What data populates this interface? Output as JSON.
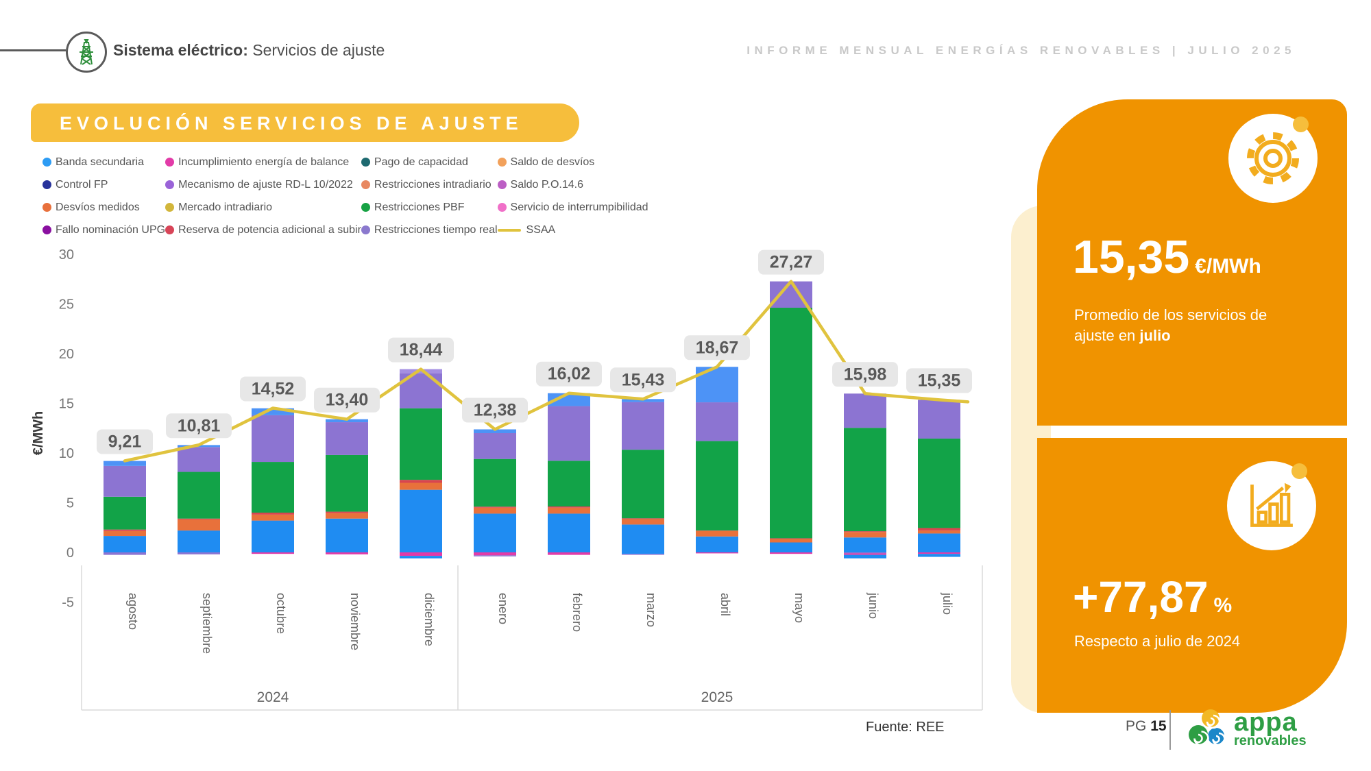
{
  "header": {
    "section_bold": "Sistema eléctrico:",
    "section_rest": " Servicios de ajuste",
    "report_title": "INFORME MENSUAL ENERGÍAS RENOVABLES | JULIO 2025"
  },
  "banner": {
    "title": "EVOLUCIÓN SERVICIOS DE AJUSTE",
    "bg": "#F6BE3C"
  },
  "legend": {
    "columns": [
      [
        {
          "label": "Banda secundaria",
          "color": "#2D9CF4"
        },
        {
          "label": "Control FP",
          "color": "#28339B"
        },
        {
          "label": "Desvíos medidos",
          "color": "#E8703C"
        },
        {
          "label": "Fallo nominación UPG",
          "color": "#8A10A0"
        }
      ],
      [
        {
          "label": "Incumplimiento energía de balance",
          "color": "#E23BA8"
        },
        {
          "label": "Mecanismo de ajuste RD-L 10/2022",
          "color": "#9A63D8"
        },
        {
          "label": "Mercado intradiario",
          "color": "#D2B63B"
        },
        {
          "label": "Reserva de potencia adicional a subir",
          "color": "#D84558"
        }
      ],
      [
        {
          "label": "Pago de capacidad",
          "color": "#1E6A70"
        },
        {
          "label": "Restricciones intradiario",
          "color": "#E88861"
        },
        {
          "label": "Restricciones PBF",
          "color": "#17A244"
        },
        {
          "label": "Restricciones tiempo real",
          "color": "#8B79CE"
        }
      ],
      [
        {
          "label": "Saldo de desvíos",
          "color": "#F2A15B"
        },
        {
          "label": "Saldo P.O.14.6",
          "color": "#BC5FC4"
        },
        {
          "label": "Servicio de interrumpibilidad",
          "color": "#F070C8"
        },
        {
          "label": "SSAA",
          "color": "#E0C33E",
          "type": "line"
        }
      ]
    ]
  },
  "chart_data": {
    "type": "bar",
    "subtype": "stacked-columns-with-line",
    "title": "EVOLUCIÓN SERVICIOS DE AJUSTE",
    "xlabel": "",
    "ylabel": "€/MWh",
    "ylim": [
      -5,
      30
    ],
    "yticks": [
      30,
      25,
      20,
      15,
      10,
      5,
      0,
      -5
    ],
    "grid": false,
    "legend_position": "top",
    "categories": [
      "agosto",
      "septiembre",
      "octubre",
      "noviembre",
      "diciembre",
      "enero",
      "febrero",
      "marzo",
      "abril",
      "mayo",
      "junio",
      "julio"
    ],
    "year_groups": [
      {
        "label": "2024",
        "from": 0,
        "to": 4
      },
      {
        "label": "2025",
        "from": 5,
        "to": 11
      }
    ],
    "totals": [
      9.21,
      10.81,
      14.52,
      13.4,
      18.44,
      12.38,
      16.02,
      15.43,
      18.67,
      27.27,
      15.98,
      15.35
    ],
    "total_labels": [
      "9,21",
      "10,81",
      "14,52",
      "13,40",
      "18,44",
      "12,38",
      "16,02",
      "15,43",
      "18,67",
      "27,27",
      "15,98",
      "15,35"
    ],
    "line": {
      "name": "SSAA",
      "color": "#E0C33E",
      "values": [
        9.21,
        10.81,
        14.52,
        13.4,
        18.44,
        12.38,
        16.02,
        15.43,
        18.67,
        27.27,
        15.98,
        15.35
      ]
    },
    "bar_colors": {
      "blue": "#1F8CF2",
      "lightblue": "#4D93F6",
      "orange": "#E8713B",
      "red": "#D8464F",
      "green": "#12A348",
      "purple": "#8C74D2",
      "lavender": "#A58FE2",
      "magenta": "#E23BA8"
    },
    "bars": [
      {
        "month": "agosto",
        "segments": [
          [
            "#1F8CF2",
            1.65
          ],
          [
            "#E8713B",
            0.5
          ],
          [
            "#D8464F",
            0.15
          ],
          [
            "#12A348",
            3.3
          ],
          [
            "#8C74D2",
            3.1
          ],
          [
            "#4D93F6",
            0.5
          ]
        ],
        "negatives": [
          [
            "#8C74D2",
            0.25
          ]
        ]
      },
      {
        "month": "septiembre",
        "segments": [
          [
            "#1F8CF2",
            2.2
          ],
          [
            "#E8713B",
            1.1
          ],
          [
            "#D8464F",
            0.1
          ],
          [
            "#12A348",
            4.7
          ],
          [
            "#8C74D2",
            2.5
          ],
          [
            "#4D93F6",
            0.2
          ]
        ],
        "negatives": [
          [
            "#8C74D2",
            0.2
          ]
        ]
      },
      {
        "month": "octubre",
        "segments": [
          [
            "#1F8CF2",
            3.2
          ],
          [
            "#E8713B",
            0.6
          ],
          [
            "#D8464F",
            0.2
          ],
          [
            "#12A348",
            5.1
          ],
          [
            "#8C74D2",
            4.7
          ],
          [
            "#4D93F6",
            0.7
          ]
        ],
        "negatives": [
          [
            "#E23BA8",
            0.15
          ]
        ]
      },
      {
        "month": "noviembre",
        "segments": [
          [
            "#1F8CF2",
            3.4
          ],
          [
            "#E8713B",
            0.55
          ],
          [
            "#D8464F",
            0.15
          ],
          [
            "#12A348",
            5.7
          ],
          [
            "#8C74D2",
            3.3
          ],
          [
            "#4D93F6",
            0.3
          ]
        ],
        "negatives": [
          [
            "#E23BA8",
            0.2
          ]
        ]
      },
      {
        "month": "diciembre",
        "segments": [
          [
            "#1F8CF2",
            6.3
          ],
          [
            "#E8713B",
            0.7
          ],
          [
            "#D8464F",
            0.3
          ],
          [
            "#12A348",
            7.2
          ],
          [
            "#8C74D2",
            3.5
          ],
          [
            "#A58FE2",
            0.44
          ]
        ],
        "negatives": [
          [
            "#E23BA8",
            0.35
          ],
          [
            "#1F8CF2",
            0.25
          ]
        ]
      },
      {
        "month": "enero",
        "segments": [
          [
            "#1F8CF2",
            3.9
          ],
          [
            "#E8713B",
            0.6
          ],
          [
            "#D8464F",
            0.1
          ],
          [
            "#12A348",
            4.8
          ],
          [
            "#8C74D2",
            2.6
          ],
          [
            "#4D93F6",
            0.38
          ]
        ],
        "negatives": [
          [
            "#E23BA8",
            0.3
          ],
          [
            "#8C74D2",
            0.1
          ]
        ]
      },
      {
        "month": "febrero",
        "segments": [
          [
            "#1F8CF2",
            3.9
          ],
          [
            "#E8713B",
            0.6
          ],
          [
            "#D8464F",
            0.12
          ],
          [
            "#12A348",
            4.6
          ],
          [
            "#8C74D2",
            5.5
          ],
          [
            "#4D93F6",
            1.3
          ]
        ],
        "negatives": [
          [
            "#E23BA8",
            0.25
          ]
        ]
      },
      {
        "month": "marzo",
        "segments": [
          [
            "#1F8CF2",
            2.8
          ],
          [
            "#E8713B",
            0.55
          ],
          [
            "#D8464F",
            0.08
          ],
          [
            "#12A348",
            6.9
          ],
          [
            "#8C74D2",
            4.8
          ],
          [
            "#4D93F6",
            0.3
          ]
        ],
        "negatives": [
          [
            "#1F8CF2",
            0.15
          ],
          [
            "#8C74D2",
            0.1
          ]
        ]
      },
      {
        "month": "abril",
        "segments": [
          [
            "#1F8CF2",
            1.6
          ],
          [
            "#E8713B",
            0.55
          ],
          [
            "#D8464F",
            0.05
          ],
          [
            "#12A348",
            9.0
          ],
          [
            "#8C74D2",
            3.9
          ],
          [
            "#4D93F6",
            3.57
          ]
        ],
        "negatives": [
          [
            "#E23BA8",
            0.1
          ]
        ]
      },
      {
        "month": "mayo",
        "segments": [
          [
            "#1F8CF2",
            1.0
          ],
          [
            "#E8713B",
            0.35
          ],
          [
            "#D8464F",
            0.07
          ],
          [
            "#12A348",
            23.2
          ],
          [
            "#8C74D2",
            2.65
          ]
        ],
        "negatives": [
          [
            "#E23BA8",
            0.15
          ]
        ]
      },
      {
        "month": "junio",
        "segments": [
          [
            "#1F8CF2",
            1.5
          ],
          [
            "#E8713B",
            0.55
          ],
          [
            "#D8464F",
            0.08
          ],
          [
            "#12A348",
            10.4
          ],
          [
            "#8C74D2",
            3.45
          ]
        ],
        "negatives": [
          [
            "#8C74D2",
            0.1
          ],
          [
            "#E23BA8",
            0.15
          ],
          [
            "#1F8CF2",
            0.35
          ]
        ]
      },
      {
        "month": "julio",
        "segments": [
          [
            "#1F8CF2",
            1.9
          ],
          [
            "#E8713B",
            0.3
          ],
          [
            "#D8464F",
            0.25
          ],
          [
            "#12A348",
            9.0
          ],
          [
            "#8C74D2",
            3.9
          ]
        ],
        "negatives": [
          [
            "#E23BA8",
            0.15
          ],
          [
            "#1F8CF2",
            0.3
          ]
        ]
      }
    ],
    "source": "Fuente: REE"
  },
  "kpi_top": {
    "value": "15,35",
    "unit": "€/MWh",
    "desc_prefix": "Promedio de los servicios de ajuste en ",
    "desc_bold": "julio",
    "icon": "gear-icon",
    "card_color": "#F09300"
  },
  "kpi_bottom": {
    "value": "+77,87",
    "unit": "%",
    "desc": "Respecto a julio de 2024",
    "icon": "bar-chart-up-icon",
    "card_color": "#F09300"
  },
  "footer": {
    "source": "Fuente: REE",
    "page_label": "PG ",
    "page_number": "15",
    "logo_main": "appa",
    "logo_sub": "renovables"
  }
}
